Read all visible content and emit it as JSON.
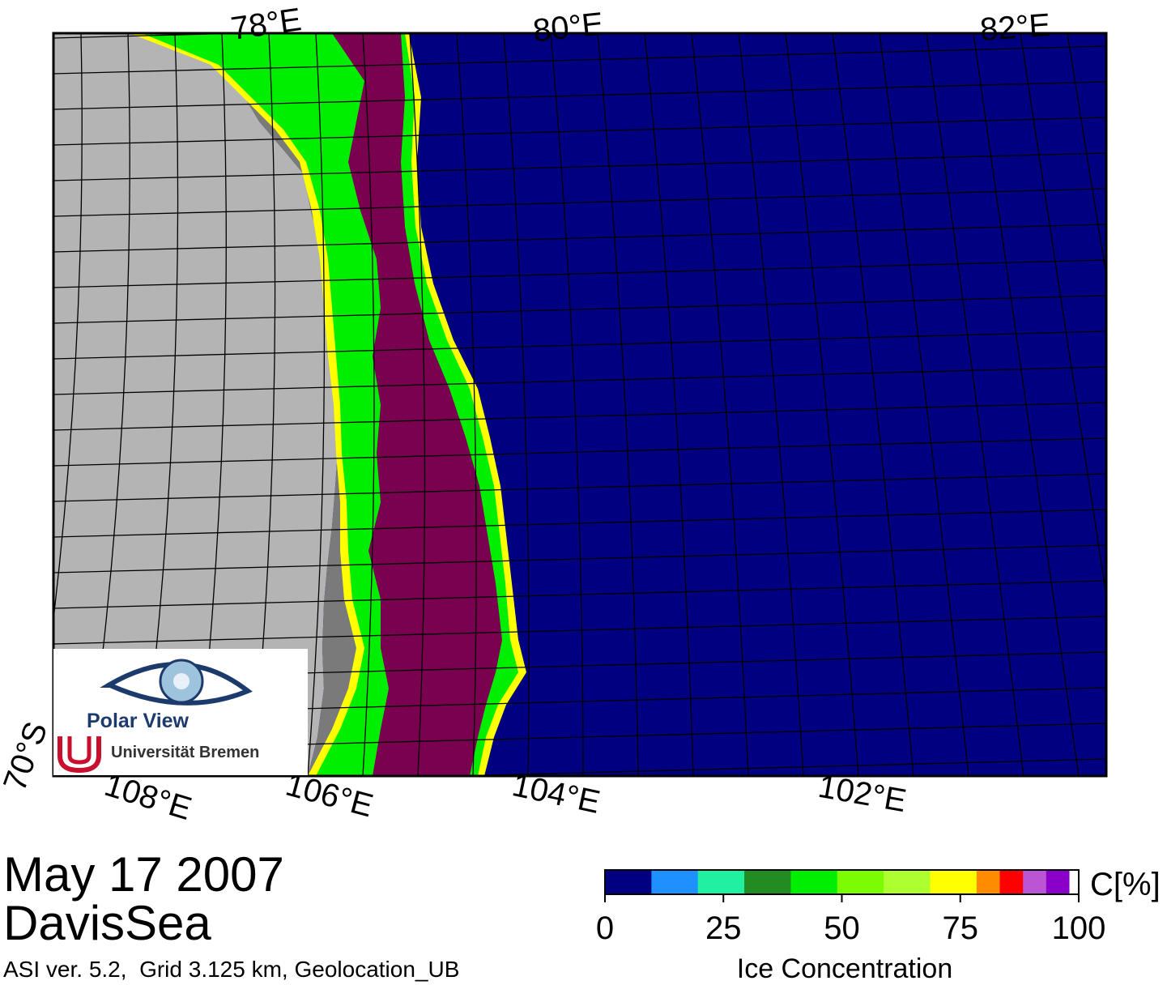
{
  "map": {
    "top_lon_labels": [
      "78°E",
      "80°E",
      "82°E"
    ],
    "bottom_lon_labels": [
      "108°E",
      "106°E",
      "104°E",
      "102°E"
    ],
    "lat_label": "70°S",
    "colors": {
      "ocean": "#000080",
      "land": "#b4b4b4",
      "ice_shelf": "#7a7a7a",
      "high_ice": "#7a0050",
      "grid": "#000000"
    }
  },
  "logo": {
    "title": "Polar View",
    "university": "Universität Bremen",
    "eye_icon": "eye-icon",
    "uni_icon": "bremen-u-icon"
  },
  "caption": {
    "date": "May 17 2007",
    "region": "DavisSea",
    "info": "ASI ver. 5.2,  Grid 3.125 km, Geolocation_UB"
  },
  "colorbar": {
    "unit": "C[%]",
    "label": "Ice Concentration",
    "ticks": [
      "0",
      "25",
      "50",
      "75",
      "100"
    ],
    "tick_values": [
      0,
      25,
      50,
      75,
      100
    ],
    "colors": [
      "#000080",
      "#1e90ff",
      "#20f0a0",
      "#228b22",
      "#00ee00",
      "#7cfc00",
      "#adff2f",
      "#ffff00",
      "#ff8c00",
      "#ff0000",
      "#ba55d3",
      "#8a00c8",
      "#ffffff"
    ]
  }
}
